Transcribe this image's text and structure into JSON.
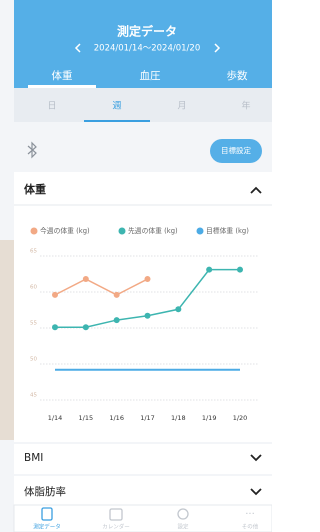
{
  "header": {
    "title": "測定データ",
    "date_range": "2024/01/14～2024/01/20"
  },
  "tabs": [
    "体重",
    "血圧",
    "歩数"
  ],
  "period_tabs": [
    "日",
    "週",
    "月",
    "年"
  ],
  "goal_button": "目標設定",
  "card_title": "体重",
  "rows": [
    "BMI",
    "体脂肪率"
  ],
  "nav": [
    "測定データ",
    "カレンダー",
    "設定",
    "その他"
  ],
  "chart_data": {
    "type": "line",
    "categories": [
      "1/14",
      "1/15",
      "1/16",
      "1/17",
      "1/18",
      "1/19",
      "1/20"
    ],
    "series": [
      {
        "name": "今週の体重 (kg)",
        "color": "#f2a985",
        "markers": true,
        "values": [
          59.6,
          61.8,
          59.6,
          61.8,
          null,
          null,
          null
        ]
      },
      {
        "name": "先週の体重 (kg)",
        "color": "#3db5b0",
        "markers": true,
        "values": [
          55.1,
          55.1,
          56.1,
          56.7,
          57.6,
          63.1,
          63.1
        ]
      },
      {
        "name": "目標体重 (kg)",
        "color": "#4cabe5",
        "markers": false,
        "values": [
          49.2,
          49.2,
          49.2,
          49.2,
          49.2,
          49.2,
          49.2
        ]
      }
    ],
    "ylim": [
      45,
      65
    ],
    "yticks": [
      45,
      50,
      55,
      60,
      65
    ],
    "grid": true
  }
}
